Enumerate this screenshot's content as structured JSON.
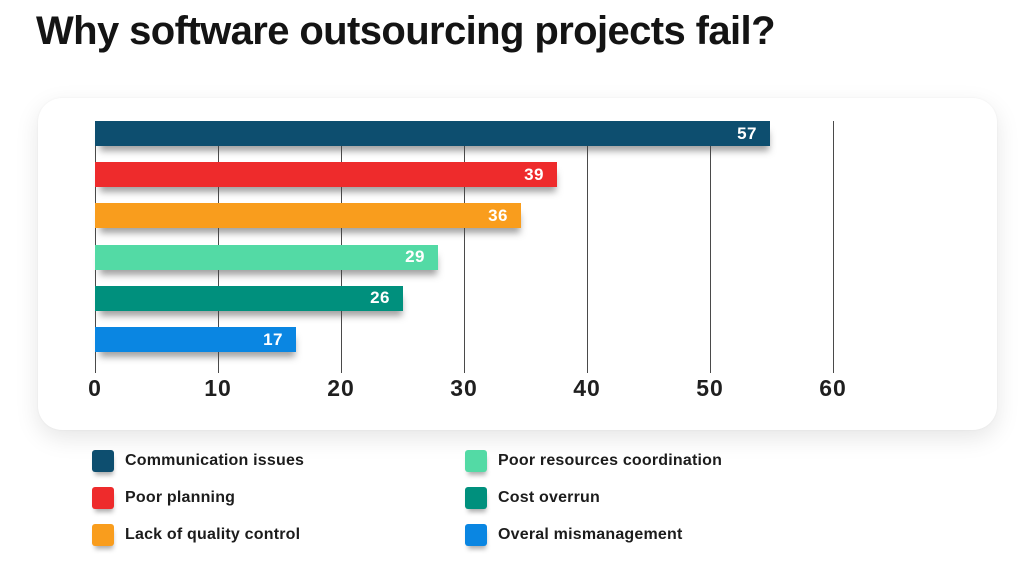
{
  "chart_data": {
    "type": "bar",
    "orientation": "horizontal",
    "title": "Why software outsourcing projects fail?",
    "categories": [
      "Communication issues",
      "Poor planning",
      "Lack of quality control",
      "Poor resources coordination",
      "Cost overrun",
      "Overal mismanagement"
    ],
    "values": [
      57,
      39,
      36,
      29,
      26,
      17
    ],
    "colors": [
      "#0d4e6f",
      "#ee2b2c",
      "#f99d1d",
      "#53daa5",
      "#00907d",
      "#0a86e2"
    ],
    "value_label_color": "#ffffff",
    "xlabel": "",
    "ylabel": "",
    "xlim": [
      0,
      60
    ],
    "x_ticks": [
      0,
      10,
      20,
      30,
      40,
      50,
      60
    ],
    "grid": true,
    "gridline_color": "#4a4a4a",
    "legend_position": "bottom",
    "legend_columns": 2,
    "value_labels": "inside-end"
  }
}
